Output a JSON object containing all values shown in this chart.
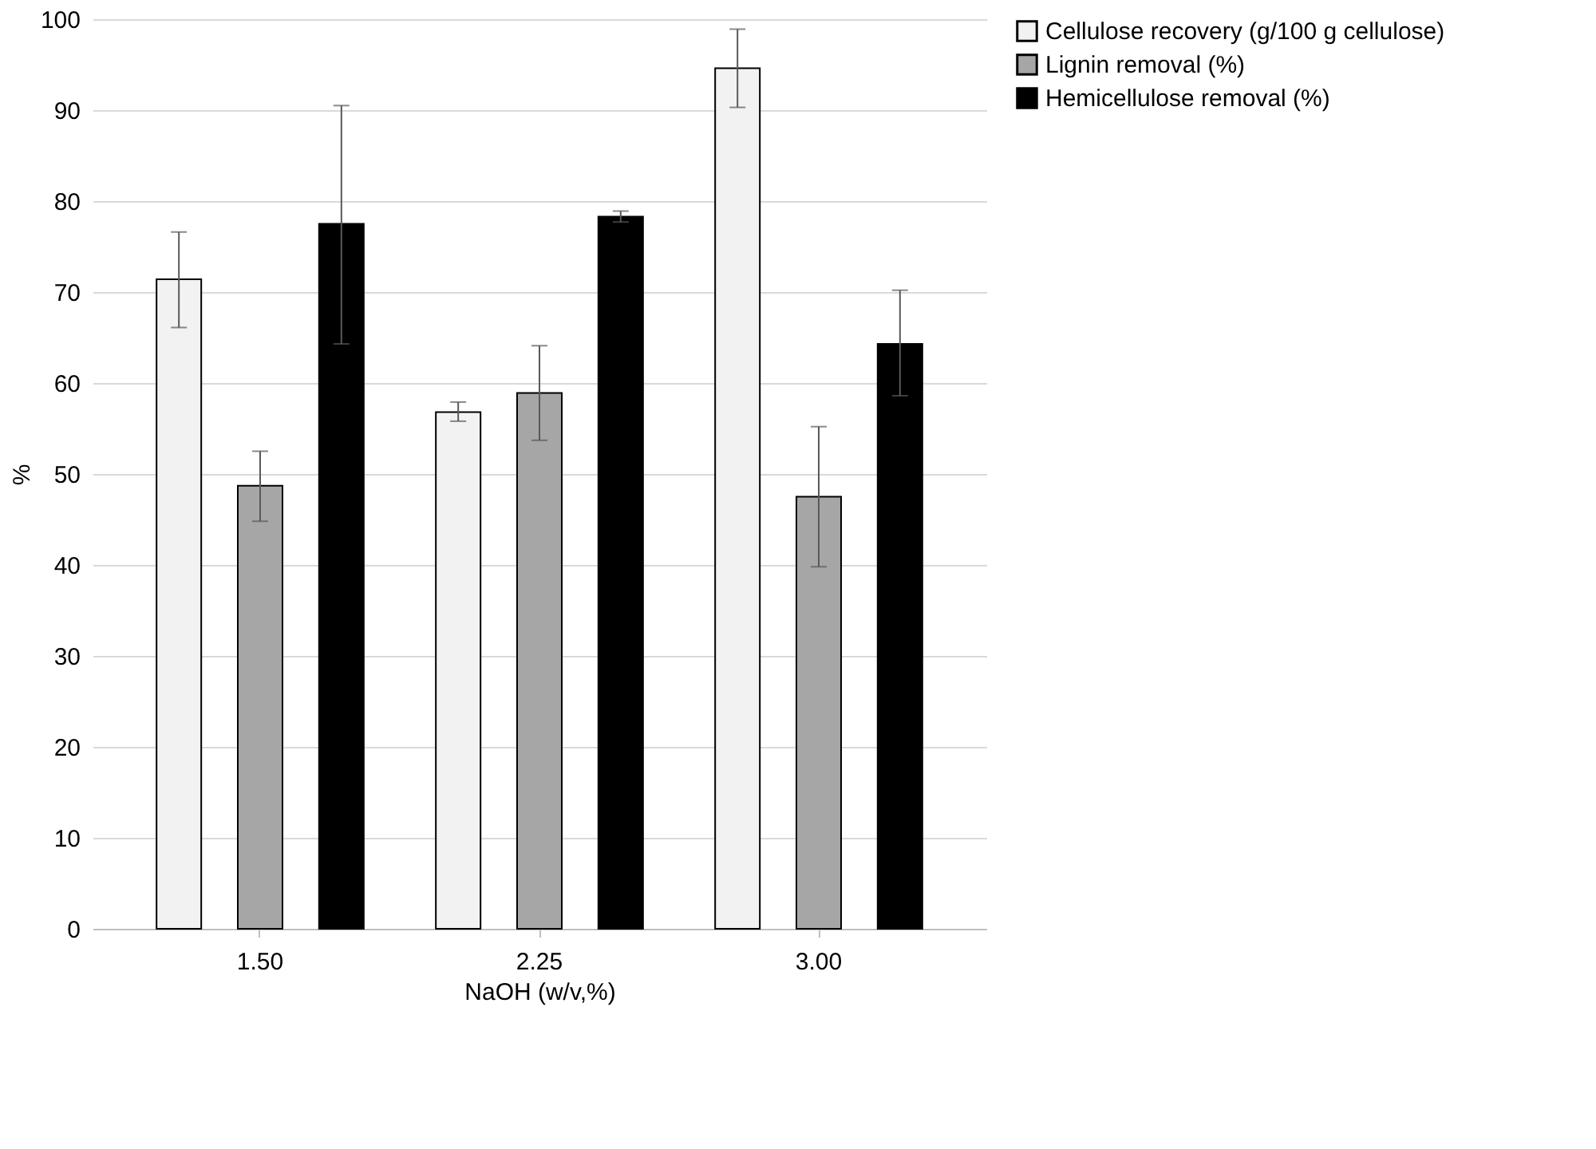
{
  "chart_data": {
    "type": "bar",
    "xlabel": "NaOH (w/v,%)",
    "ylabel": "%",
    "categories": [
      "1.50",
      "2.25",
      "3.00"
    ],
    "series": [
      {
        "name": "Cellulose recovery (g/100 g cellulose)",
        "color": "#f2f2f2",
        "values": [
          71.4,
          56.8,
          94.6
        ],
        "errors": [
          [
            66.1,
            76.6
          ],
          [
            55.8,
            57.9
          ],
          [
            90.3,
            98.9
          ]
        ]
      },
      {
        "name": "Lignin removal (%)",
        "color": "#a6a6a6",
        "values": [
          48.7,
          58.9,
          47.5
        ],
        "errors": [
          [
            44.8,
            52.5
          ],
          [
            53.7,
            64.1
          ],
          [
            39.8,
            55.2
          ]
        ]
      },
      {
        "name": "Hemicellulose removal (%)",
        "color": "#000000",
        "values": [
          77.5,
          78.3,
          64.3
        ],
        "errors": [
          [
            64.3,
            90.5
          ],
          [
            77.7,
            78.9
          ],
          [
            58.6,
            70.2
          ]
        ]
      }
    ],
    "ylim": [
      0,
      100
    ],
    "yticks": [
      0,
      10,
      20,
      30,
      40,
      50,
      60,
      70,
      80,
      90,
      100
    ],
    "grid": "y",
    "legend": "right"
  }
}
